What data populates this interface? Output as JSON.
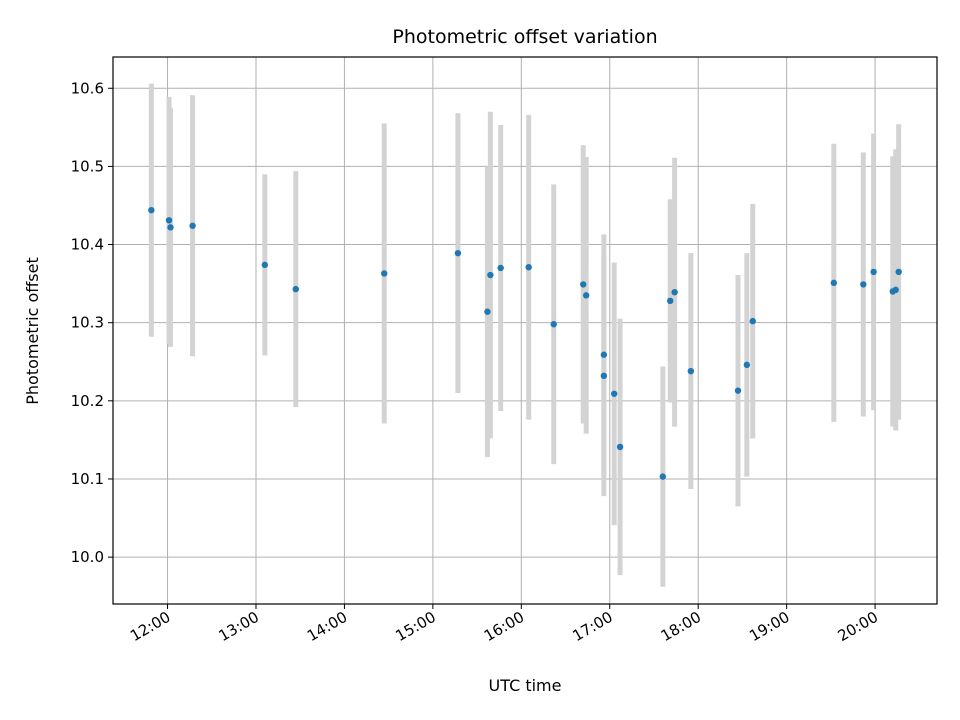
{
  "chart_data": {
    "type": "scatter",
    "title": "Photometric offset variation",
    "xlabel": "UTC time",
    "ylabel": "Photometric offset",
    "x_ticks": [
      "12:00",
      "13:00",
      "14:00",
      "15:00",
      "16:00",
      "17:00",
      "18:00",
      "19:00",
      "20:00"
    ],
    "y_ticks": [
      10.0,
      10.1,
      10.2,
      10.3,
      10.4,
      10.5,
      10.6
    ],
    "xlim": [
      "11:23",
      "20:42"
    ],
    "ylim": [
      9.94,
      10.64
    ],
    "grid": true,
    "colors": {
      "point": "#1f77b4",
      "errorbar": "#d3d3d3",
      "grid": "#b0b0b0"
    },
    "points": [
      {
        "x": "11:49",
        "y": 10.444,
        "err": 0.162
      },
      {
        "x": "12:01",
        "y": 10.431,
        "err": 0.158
      },
      {
        "x": "12:02",
        "y": 10.422,
        "err": 0.153
      },
      {
        "x": "12:17",
        "y": 10.424,
        "err": 0.167
      },
      {
        "x": "13:06",
        "y": 10.374,
        "err": 0.116
      },
      {
        "x": "13:27",
        "y": 10.343,
        "err": 0.151
      },
      {
        "x": "14:27",
        "y": 10.363,
        "err": 0.192
      },
      {
        "x": "15:17",
        "y": 10.389,
        "err": 0.179
      },
      {
        "x": "15:37",
        "y": 10.314,
        "err": 0.186
      },
      {
        "x": "15:39",
        "y": 10.361,
        "err": 0.209
      },
      {
        "x": "15:46",
        "y": 10.37,
        "err": 0.183
      },
      {
        "x": "16:05",
        "y": 10.371,
        "err": 0.195
      },
      {
        "x": "16:22",
        "y": 10.298,
        "err": 0.179
      },
      {
        "x": "16:42",
        "y": 10.349,
        "err": 0.178
      },
      {
        "x": "16:44",
        "y": 10.335,
        "err": 0.177
      },
      {
        "x": "16:56",
        "y": 10.259,
        "err": 0.154
      },
      {
        "x": "16:56",
        "y": 10.232,
        "err": 0.154
      },
      {
        "x": "17:03",
        "y": 10.209,
        "err": 0.168
      },
      {
        "x": "17:07",
        "y": 10.141,
        "err": 0.164
      },
      {
        "x": "17:36",
        "y": 10.103,
        "err": 0.141
      },
      {
        "x": "17:41",
        "y": 10.328,
        "err": 0.13
      },
      {
        "x": "17:44",
        "y": 10.339,
        "err": 0.172
      },
      {
        "x": "17:55",
        "y": 10.238,
        "err": 0.151
      },
      {
        "x": "18:27",
        "y": 10.213,
        "err": 0.148
      },
      {
        "x": "18:33",
        "y": 10.246,
        "err": 0.143
      },
      {
        "x": "18:37",
        "y": 10.302,
        "err": 0.15
      },
      {
        "x": "19:32",
        "y": 10.351,
        "err": 0.178
      },
      {
        "x": "19:52",
        "y": 10.349,
        "err": 0.169
      },
      {
        "x": "19:59",
        "y": 10.365,
        "err": 0.177
      },
      {
        "x": "20:12",
        "y": 10.34,
        "err": 0.173
      },
      {
        "x": "20:14",
        "y": 10.342,
        "err": 0.18
      },
      {
        "x": "20:16",
        "y": 10.365,
        "err": 0.189
      }
    ]
  }
}
